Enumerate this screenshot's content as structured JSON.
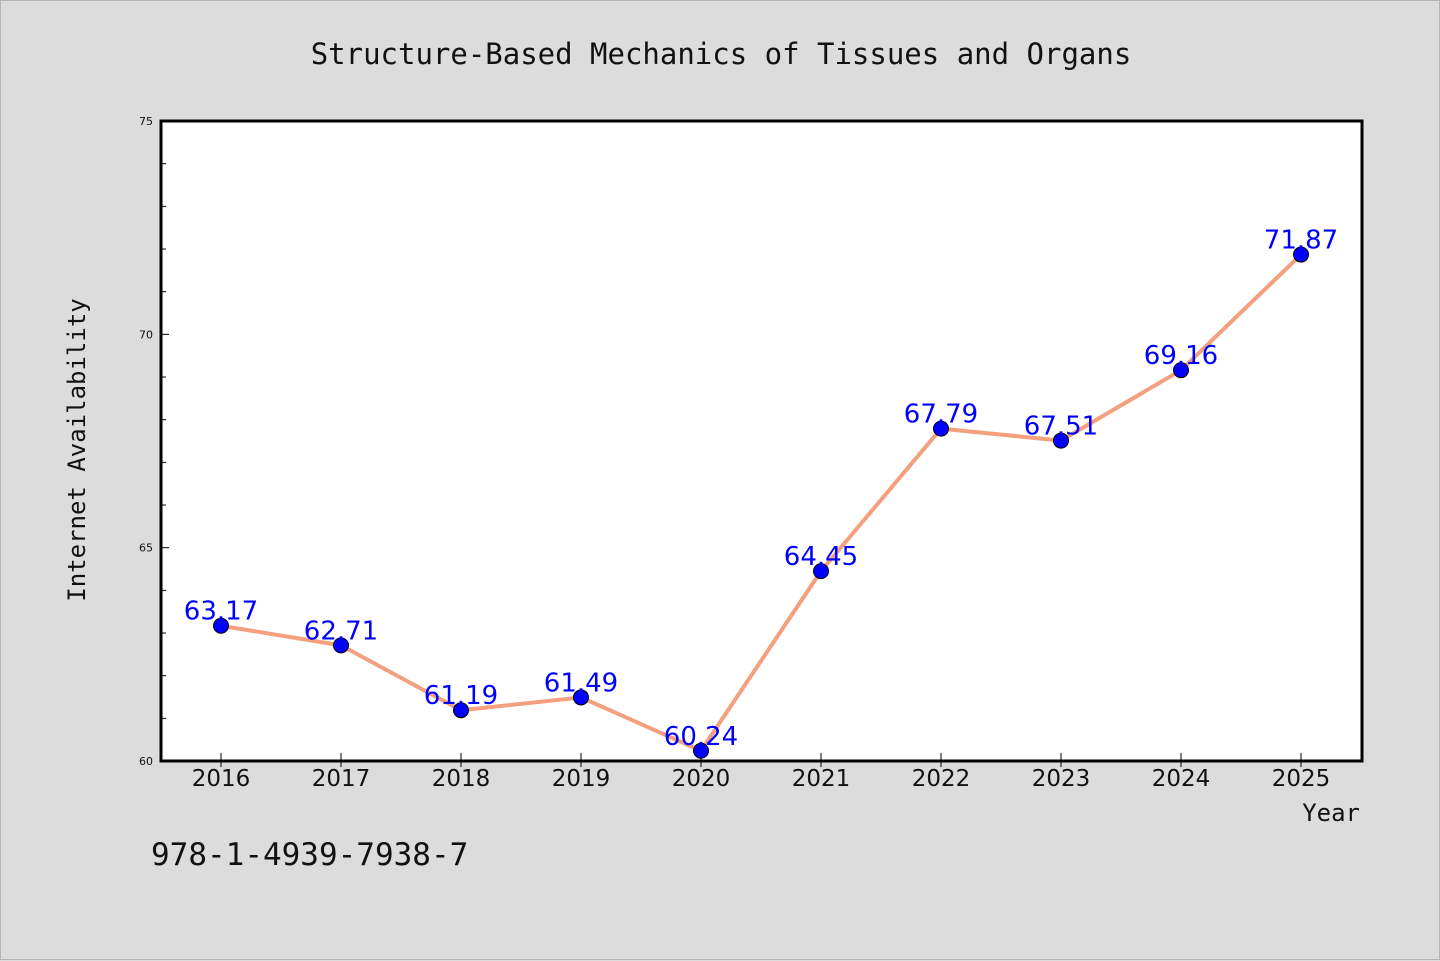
{
  "chart_data": {
    "type": "line",
    "title": "Structure-Based Mechanics of Tissues and Organs",
    "xlabel": "Year",
    "ylabel": "Internet Availability",
    "categories": [
      "2016",
      "2017",
      "2018",
      "2019",
      "2020",
      "2021",
      "2022",
      "2023",
      "2024",
      "2025"
    ],
    "series": [
      {
        "values": [
          63.17,
          62.71,
          61.19,
          61.49,
          60.24,
          64.45,
          67.79,
          67.51,
          69.16,
          71.87
        ],
        "labels": [
          "63.17",
          "62.71",
          "61.19",
          "61.49",
          "60.24",
          "64.45",
          "67.79",
          "67.51",
          "69.16",
          "71.87"
        ]
      }
    ],
    "ylim": [
      60,
      75
    ],
    "yticks": [
      "60",
      "65",
      "70",
      "75"
    ],
    "grid": false,
    "legend": "none",
    "colors": {
      "line": "#f4a07e",
      "marker": "#0000ff",
      "data_label": "#0000ff",
      "background": "#dcdcdc",
      "plot_background": "#ffffff"
    }
  },
  "footer": {
    "isbn": "978-1-4939-7938-7"
  }
}
